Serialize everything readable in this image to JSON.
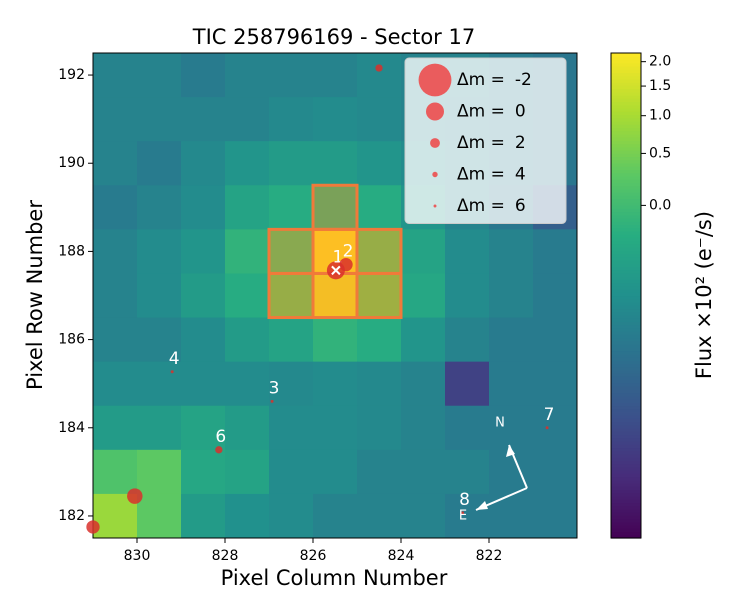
{
  "chart_data": {
    "type": "heatmap",
    "title": "TIC 258796169 - Sector 17",
    "x_label": "Pixel Column Number",
    "y_label": "Pixel Row Number",
    "colorbar_label": "Flux ×10² (e⁻/s)",
    "xlim": [
      831,
      820
    ],
    "ylim": [
      181.5,
      192.5
    ],
    "xticks": [
      830,
      828,
      826,
      824,
      822
    ],
    "yticks": [
      182,
      184,
      186,
      188,
      190,
      192
    ],
    "clim": [
      -1,
      2.2
    ],
    "cticks": [
      {
        "value": 0,
        "label": "0.0"
      },
      0.5,
      {
        "value": 1,
        "label": "1.0"
      },
      1.5,
      {
        "value": 2,
        "label": "2.0"
      }
    ],
    "colormap": "viridis",
    "z": [
      [
        -0.62,
        -0.62,
        -0.67,
        -0.62,
        -0.62,
        -0.62,
        -0.58,
        -0.62,
        -0.62,
        -0.67,
        -0.7
      ],
      [
        -0.62,
        -0.62,
        -0.62,
        -0.62,
        -0.58,
        -0.56,
        -0.58,
        -0.62,
        -0.65,
        -0.67,
        -0.7
      ],
      [
        -0.62,
        -0.67,
        -0.58,
        -0.48,
        -0.42,
        -0.42,
        -0.48,
        -0.56,
        -0.62,
        -0.67,
        -0.7
      ],
      [
        -0.67,
        -0.62,
        -0.56,
        -0.34,
        -0.23,
        0.06,
        -0.23,
        -0.48,
        -0.62,
        -0.7,
        -0.81
      ],
      [
        -0.62,
        -0.56,
        -0.48,
        -0.13,
        0.28,
        2.2,
        0.43,
        -0.34,
        -0.56,
        -0.62,
        -0.67
      ],
      [
        -0.62,
        -0.56,
        -0.42,
        -0.23,
        0.43,
        1.98,
        0.54,
        -0.29,
        -0.56,
        -0.62,
        -0.67
      ],
      [
        -0.62,
        -0.62,
        -0.56,
        -0.42,
        -0.34,
        -0.13,
        -0.23,
        -0.48,
        -0.62,
        -0.67,
        -0.67
      ],
      [
        -0.56,
        -0.56,
        -0.56,
        -0.56,
        -0.58,
        -0.56,
        -0.58,
        -0.62,
        -0.9,
        -0.67,
        -0.67
      ],
      [
        -0.42,
        -0.42,
        -0.34,
        -0.42,
        -0.56,
        -0.56,
        -0.58,
        -0.62,
        -0.67,
        -0.67,
        -0.67
      ],
      [
        0.14,
        0.28,
        -0.29,
        -0.34,
        -0.56,
        -0.56,
        -0.62,
        -0.62,
        -0.62,
        -0.67,
        -0.67
      ],
      [
        0.85,
        0.28,
        -0.42,
        -0.52,
        -0.56,
        -0.62,
        -0.62,
        -0.62,
        -0.67,
        -0.67,
        -0.67
      ]
    ],
    "aperture": [
      [
        3,
        5
      ],
      [
        4,
        4
      ],
      [
        4,
        5
      ],
      [
        4,
        6
      ],
      [
        5,
        4
      ],
      [
        5,
        5
      ],
      [
        5,
        6
      ]
    ],
    "stars": {
      "labels": [
        "1",
        "2",
        "3",
        "4",
        "6",
        "7",
        "8",
        null,
        null,
        null
      ],
      "x": [
        825.48,
        825.25,
        826.93,
        829.2,
        828.14,
        820.68,
        822.6,
        824.5,
        830.05,
        831.0
      ],
      "y": [
        187.57,
        187.7,
        184.6,
        185.27,
        183.5,
        184.0,
        182.07,
        192.16,
        182.45,
        181.75
      ],
      "dm": [
        0,
        1,
        6,
        6,
        3,
        6,
        6,
        3,
        0.5,
        1
      ],
      "color": "#d9302c"
    },
    "legend": {
      "prefix": "Δm =",
      "dm": [
        -2,
        0,
        2,
        4,
        6
      ],
      "color": "#ee4444",
      "position": "upper right"
    },
    "compass": {
      "north": "N",
      "east": "E"
    }
  }
}
